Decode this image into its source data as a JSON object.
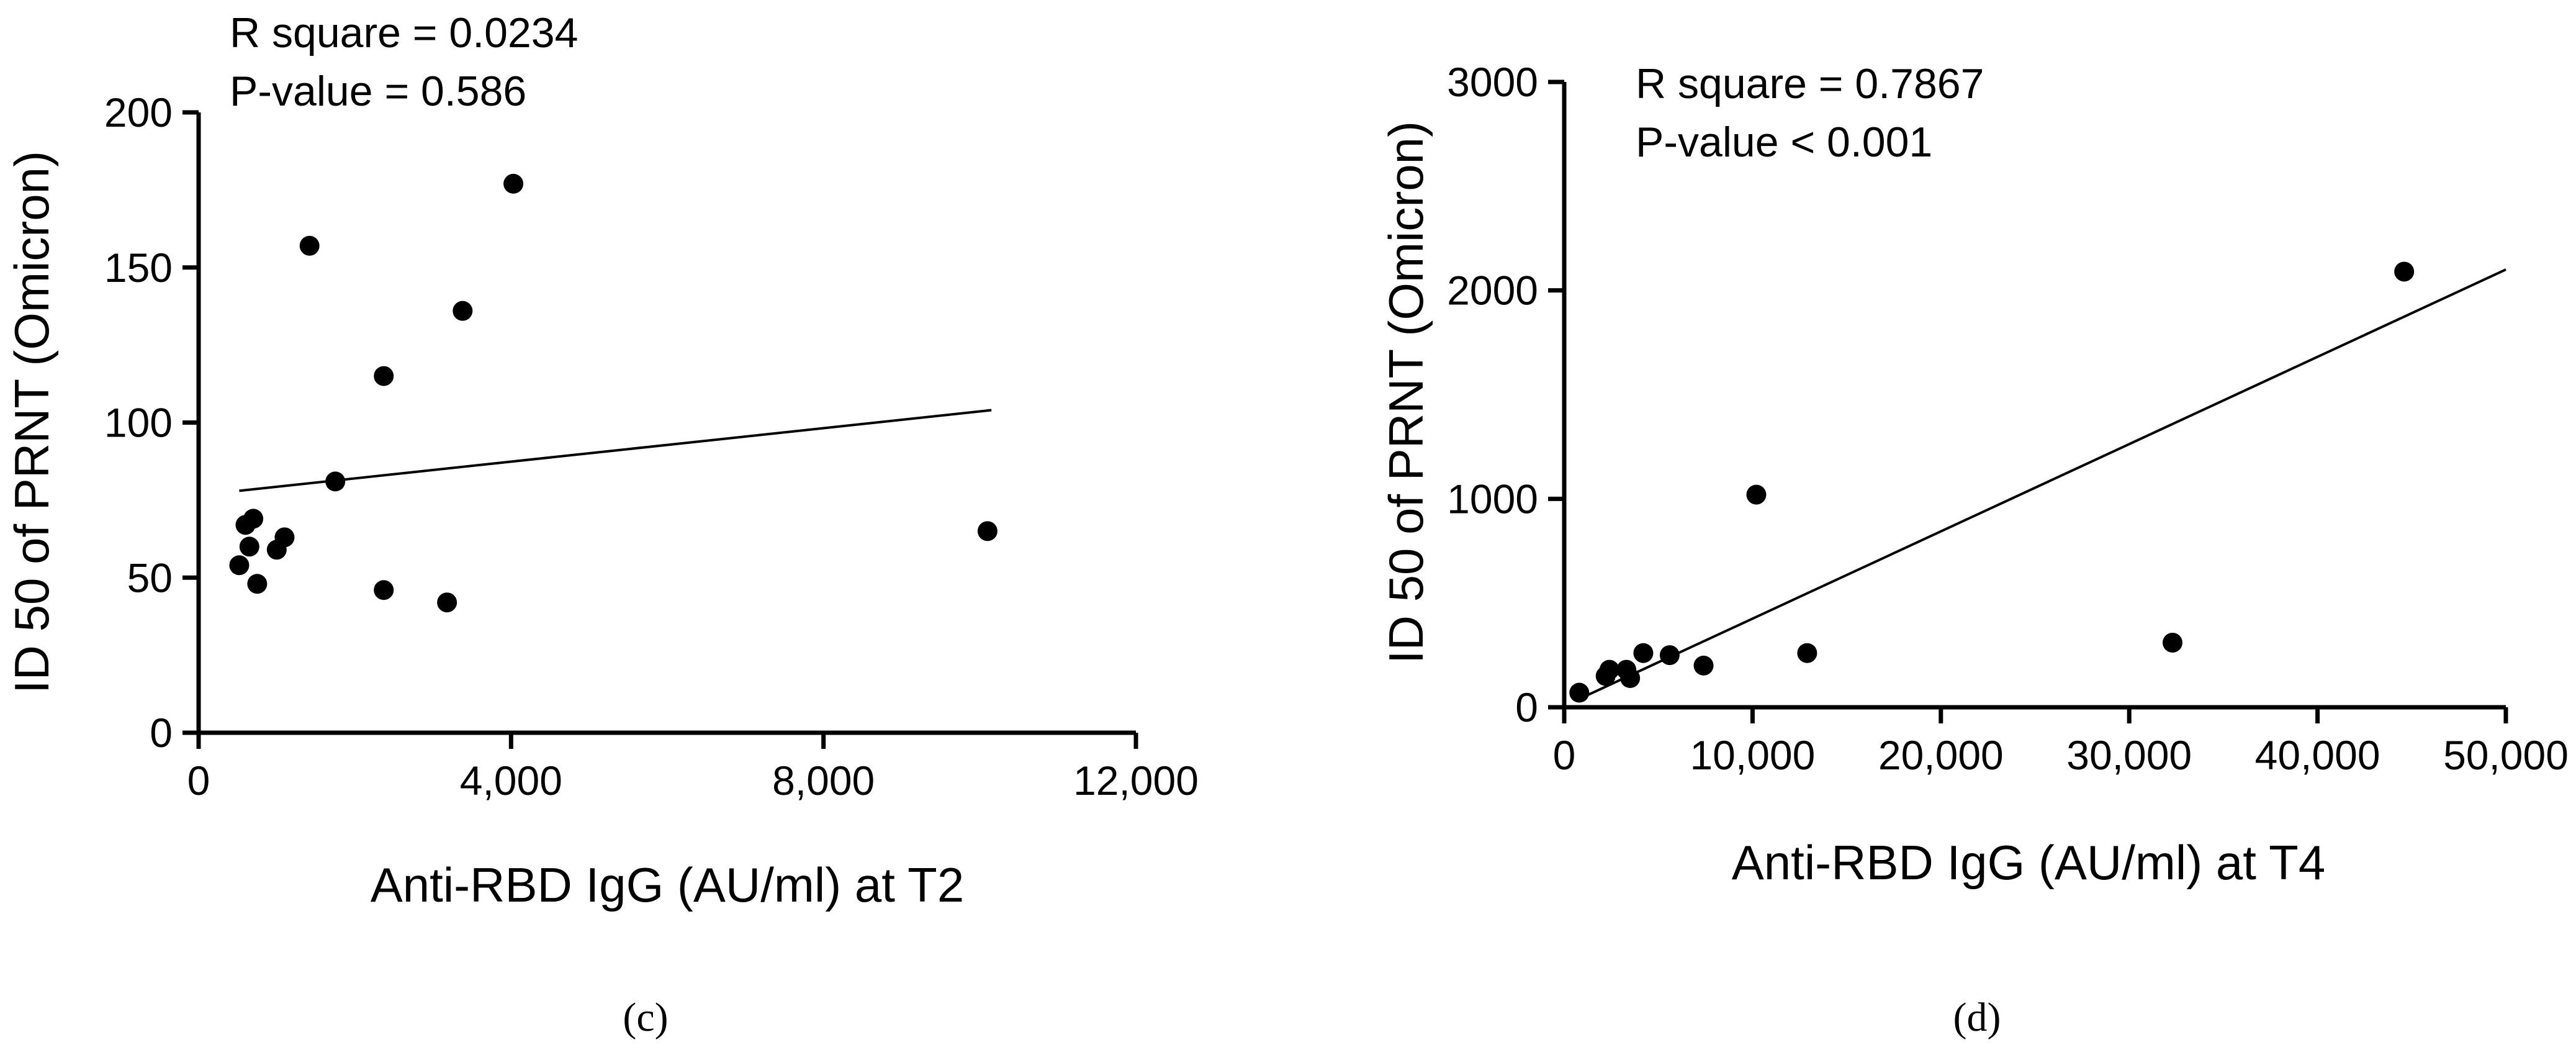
{
  "chart_data": [
    {
      "type": "scatter",
      "panel_label": "(c)",
      "xlabel": "Anti-RBD IgG (AU/ml) at  T2",
      "ylabel": "ID 50 of PRNT (Omicron)",
      "xlim": [
        0,
        12000
      ],
      "ylim": [
        0,
        200
      ],
      "x_ticks": [
        0,
        4000,
        8000,
        12000
      ],
      "x_tick_labels": [
        "0",
        "4,000",
        "8,000",
        "12,000"
      ],
      "y_ticks": [
        0,
        50,
        100,
        150,
        200
      ],
      "y_tick_labels": [
        "0",
        "50",
        "100",
        "150",
        "200"
      ],
      "annotations": [
        "R square = 0.0234",
        "P-value = 0.586"
      ],
      "points": [
        {
          "x": 520,
          "y": 54
        },
        {
          "x": 600,
          "y": 67
        },
        {
          "x": 650,
          "y": 60
        },
        {
          "x": 700,
          "y": 69
        },
        {
          "x": 750,
          "y": 48
        },
        {
          "x": 1000,
          "y": 59
        },
        {
          "x": 1100,
          "y": 63
        },
        {
          "x": 1420,
          "y": 157
        },
        {
          "x": 1750,
          "y": 81
        },
        {
          "x": 2370,
          "y": 115
        },
        {
          "x": 2370,
          "y": 46
        },
        {
          "x": 3180,
          "y": 42
        },
        {
          "x": 3380,
          "y": 136
        },
        {
          "x": 4030,
          "y": 177
        },
        {
          "x": 10100,
          "y": 65
        }
      ],
      "fit_line": {
        "x": [
          520,
          10150
        ],
        "y": [
          78,
          104
        ]
      }
    },
    {
      "type": "scatter",
      "panel_label": "(d)",
      "xlabel": "Anti-RBD IgG (AU/ml) at  T4",
      "ylabel": "ID 50 of PRNT (Omicron)",
      "xlim": [
        0,
        50000
      ],
      "ylim": [
        0,
        3000
      ],
      "x_ticks": [
        0,
        10000,
        20000,
        30000,
        40000,
        50000
      ],
      "x_tick_labels": [
        "0",
        "10,000",
        "20,000",
        "30,000",
        "40,000",
        "50,000"
      ],
      "y_ticks": [
        0,
        1000,
        2000,
        3000
      ],
      "y_tick_labels": [
        "0",
        "1000",
        "2000",
        "3000"
      ],
      "annotations": [
        "R square = 0.7867",
        "P-value < 0.001"
      ],
      "points": [
        {
          "x": 800,
          "y": 70
        },
        {
          "x": 2200,
          "y": 150
        },
        {
          "x": 2400,
          "y": 180
        },
        {
          "x": 3300,
          "y": 180
        },
        {
          "x": 3500,
          "y": 140
        },
        {
          "x": 4200,
          "y": 260
        },
        {
          "x": 5600,
          "y": 250
        },
        {
          "x": 7400,
          "y": 200
        },
        {
          "x": 10200,
          "y": 1020
        },
        {
          "x": 12900,
          "y": 260
        },
        {
          "x": 32300,
          "y": 310
        },
        {
          "x": 44600,
          "y": 2090
        }
      ],
      "fit_line": {
        "x": [
          800,
          50000
        ],
        "y": [
          40,
          2100
        ]
      }
    }
  ]
}
